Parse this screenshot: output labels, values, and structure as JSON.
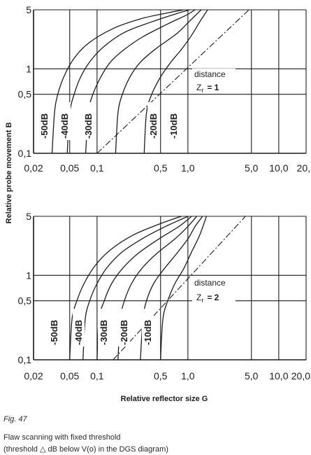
{
  "figure": {
    "number": "Fig. 47",
    "caption_line_1": "Flaw scanning with fixed threshold",
    "caption_line_2": "(threshold  △ dB below V(o) in the DGS diagram)"
  },
  "chart_data": [
    {
      "type": "line",
      "xlabel": "",
      "ylabel": "Relative probe movement B",
      "x_scale": "log",
      "y_scale": "log",
      "xlim": [
        0.02,
        20
      ],
      "ylim": [
        0.1,
        5
      ],
      "x_ticks": [
        0.02,
        0.05,
        0.1,
        0.5,
        1.0,
        5.0,
        10.0,
        20.0
      ],
      "x_tick_labels": [
        "0,02",
        "0,05",
        "0,1",
        "0,5",
        "1,0",
        "5,0",
        "10,0",
        "20,"
      ],
      "y_ticks": [
        0.1,
        0.5,
        1,
        5
      ],
      "y_tick_labels": [
        "0,1",
        "0,5",
        "1",
        "5"
      ],
      "grid": true,
      "annotation": {
        "text": "distance",
        "zr_symbol": "Z",
        "zr_subscript": "r",
        "zr_value": "= 1"
      },
      "series": [
        {
          "name": "-50dB",
          "x": [
            0.032,
            0.034,
            0.037,
            0.043,
            0.055,
            0.08,
            0.15,
            0.3,
            0.6,
            0.9
          ],
          "y": [
            0.1,
            0.3,
            0.5,
            0.8,
            1.3,
            2.0,
            3.0,
            3.9,
            4.6,
            5.0
          ]
        },
        {
          "name": "-40dB",
          "x": [
            0.047,
            0.05,
            0.056,
            0.066,
            0.085,
            0.12,
            0.2,
            0.4,
            0.7,
            1.05
          ],
          "y": [
            0.1,
            0.3,
            0.5,
            0.8,
            1.25,
            1.85,
            2.7,
            3.6,
            4.4,
            5.0
          ]
        },
        {
          "name": "-30dB",
          "x": [
            0.075,
            0.08,
            0.09,
            0.11,
            0.14,
            0.2,
            0.32,
            0.6,
            0.95,
            1.2
          ],
          "y": [
            0.1,
            0.3,
            0.5,
            0.8,
            1.2,
            1.7,
            2.4,
            3.4,
            4.3,
            5.0
          ]
        },
        {
          "name": "-20dB",
          "x": [
            0.16,
            0.17,
            0.19,
            0.23,
            0.3,
            0.45,
            0.75,
            1.05,
            1.4
          ],
          "y": [
            0.1,
            0.3,
            0.5,
            0.8,
            1.2,
            1.75,
            2.6,
            3.7,
            5.0
          ]
        },
        {
          "name": "-10dB",
          "x": [
            0.33,
            0.35,
            0.4,
            0.5,
            0.65,
            0.85,
            1.1,
            1.35,
            1.65
          ],
          "y": [
            0.1,
            0.3,
            0.5,
            0.8,
            1.2,
            1.7,
            2.5,
            3.6,
            5.0
          ]
        },
        {
          "name": "",
          "style": "dash-dot",
          "x": [
            0.1,
            4.7
          ],
          "y": [
            0.1,
            5.0
          ]
        }
      ]
    },
    {
      "type": "line",
      "xlabel": "Relative reflector size G",
      "ylabel": "",
      "x_scale": "log",
      "y_scale": "log",
      "xlim": [
        0.02,
        20
      ],
      "ylim": [
        0.1,
        5
      ],
      "x_ticks": [
        0.02,
        0.05,
        0.1,
        0.5,
        1.0,
        5.0,
        10.0,
        20.0
      ],
      "x_tick_labels": [
        "0,02",
        "0,05",
        "0,1",
        "0,5",
        "1,0",
        "5,0",
        "10,0",
        "20,0"
      ],
      "y_ticks": [
        0.1,
        0.5,
        1,
        5
      ],
      "y_tick_labels": [
        "0,1",
        "0,5",
        "1",
        "5"
      ],
      "grid": true,
      "annotation": {
        "text": "distance",
        "zr_symbol": "Z",
        "zr_subscript": "r",
        "zr_value": "= 2"
      },
      "series": [
        {
          "name": "-50dB",
          "x": [
            0.05,
            0.053,
            0.06,
            0.072,
            0.095,
            0.14,
            0.25,
            0.5,
            0.85
          ],
          "y": [
            0.1,
            0.3,
            0.5,
            0.8,
            1.3,
            2.0,
            3.0,
            4.1,
            5.0
          ]
        },
        {
          "name": "-40dB",
          "x": [
            0.07,
            0.074,
            0.083,
            0.1,
            0.13,
            0.19,
            0.33,
            0.6,
            1.0
          ],
          "y": [
            0.1,
            0.3,
            0.5,
            0.8,
            1.25,
            1.9,
            2.8,
            3.9,
            5.0
          ]
        },
        {
          "name": "-30dB",
          "x": [
            0.1,
            0.105,
            0.12,
            0.145,
            0.19,
            0.28,
            0.48,
            0.8,
            1.1
          ],
          "y": [
            0.1,
            0.3,
            0.5,
            0.8,
            1.2,
            1.8,
            2.7,
            3.8,
            5.0
          ]
        },
        {
          "name": "-20dB",
          "x": [
            0.17,
            0.18,
            0.2,
            0.24,
            0.31,
            0.45,
            0.72,
            1.0,
            1.25
          ],
          "y": [
            0.1,
            0.3,
            0.5,
            0.8,
            1.2,
            1.8,
            2.7,
            3.8,
            5.0
          ]
        },
        {
          "name": "-10dB",
          "x": [
            0.3,
            0.32,
            0.35,
            0.42,
            0.55,
            0.75,
            1.0,
            1.2,
            1.45
          ],
          "y": [
            0.1,
            0.3,
            0.5,
            0.8,
            1.2,
            1.8,
            2.7,
            3.8,
            5.0
          ]
        },
        {
          "name": "",
          "x": [
            0.5,
            0.53,
            0.6,
            0.72,
            0.9,
            1.1,
            1.35,
            1.6
          ],
          "y": [
            0.1,
            0.3,
            0.5,
            0.8,
            1.2,
            1.9,
            3.0,
            5.0
          ]
        },
        {
          "name": "",
          "style": "dash-dot",
          "x": [
            0.15,
            4.3
          ],
          "y": [
            0.1,
            5.0
          ]
        }
      ]
    }
  ]
}
